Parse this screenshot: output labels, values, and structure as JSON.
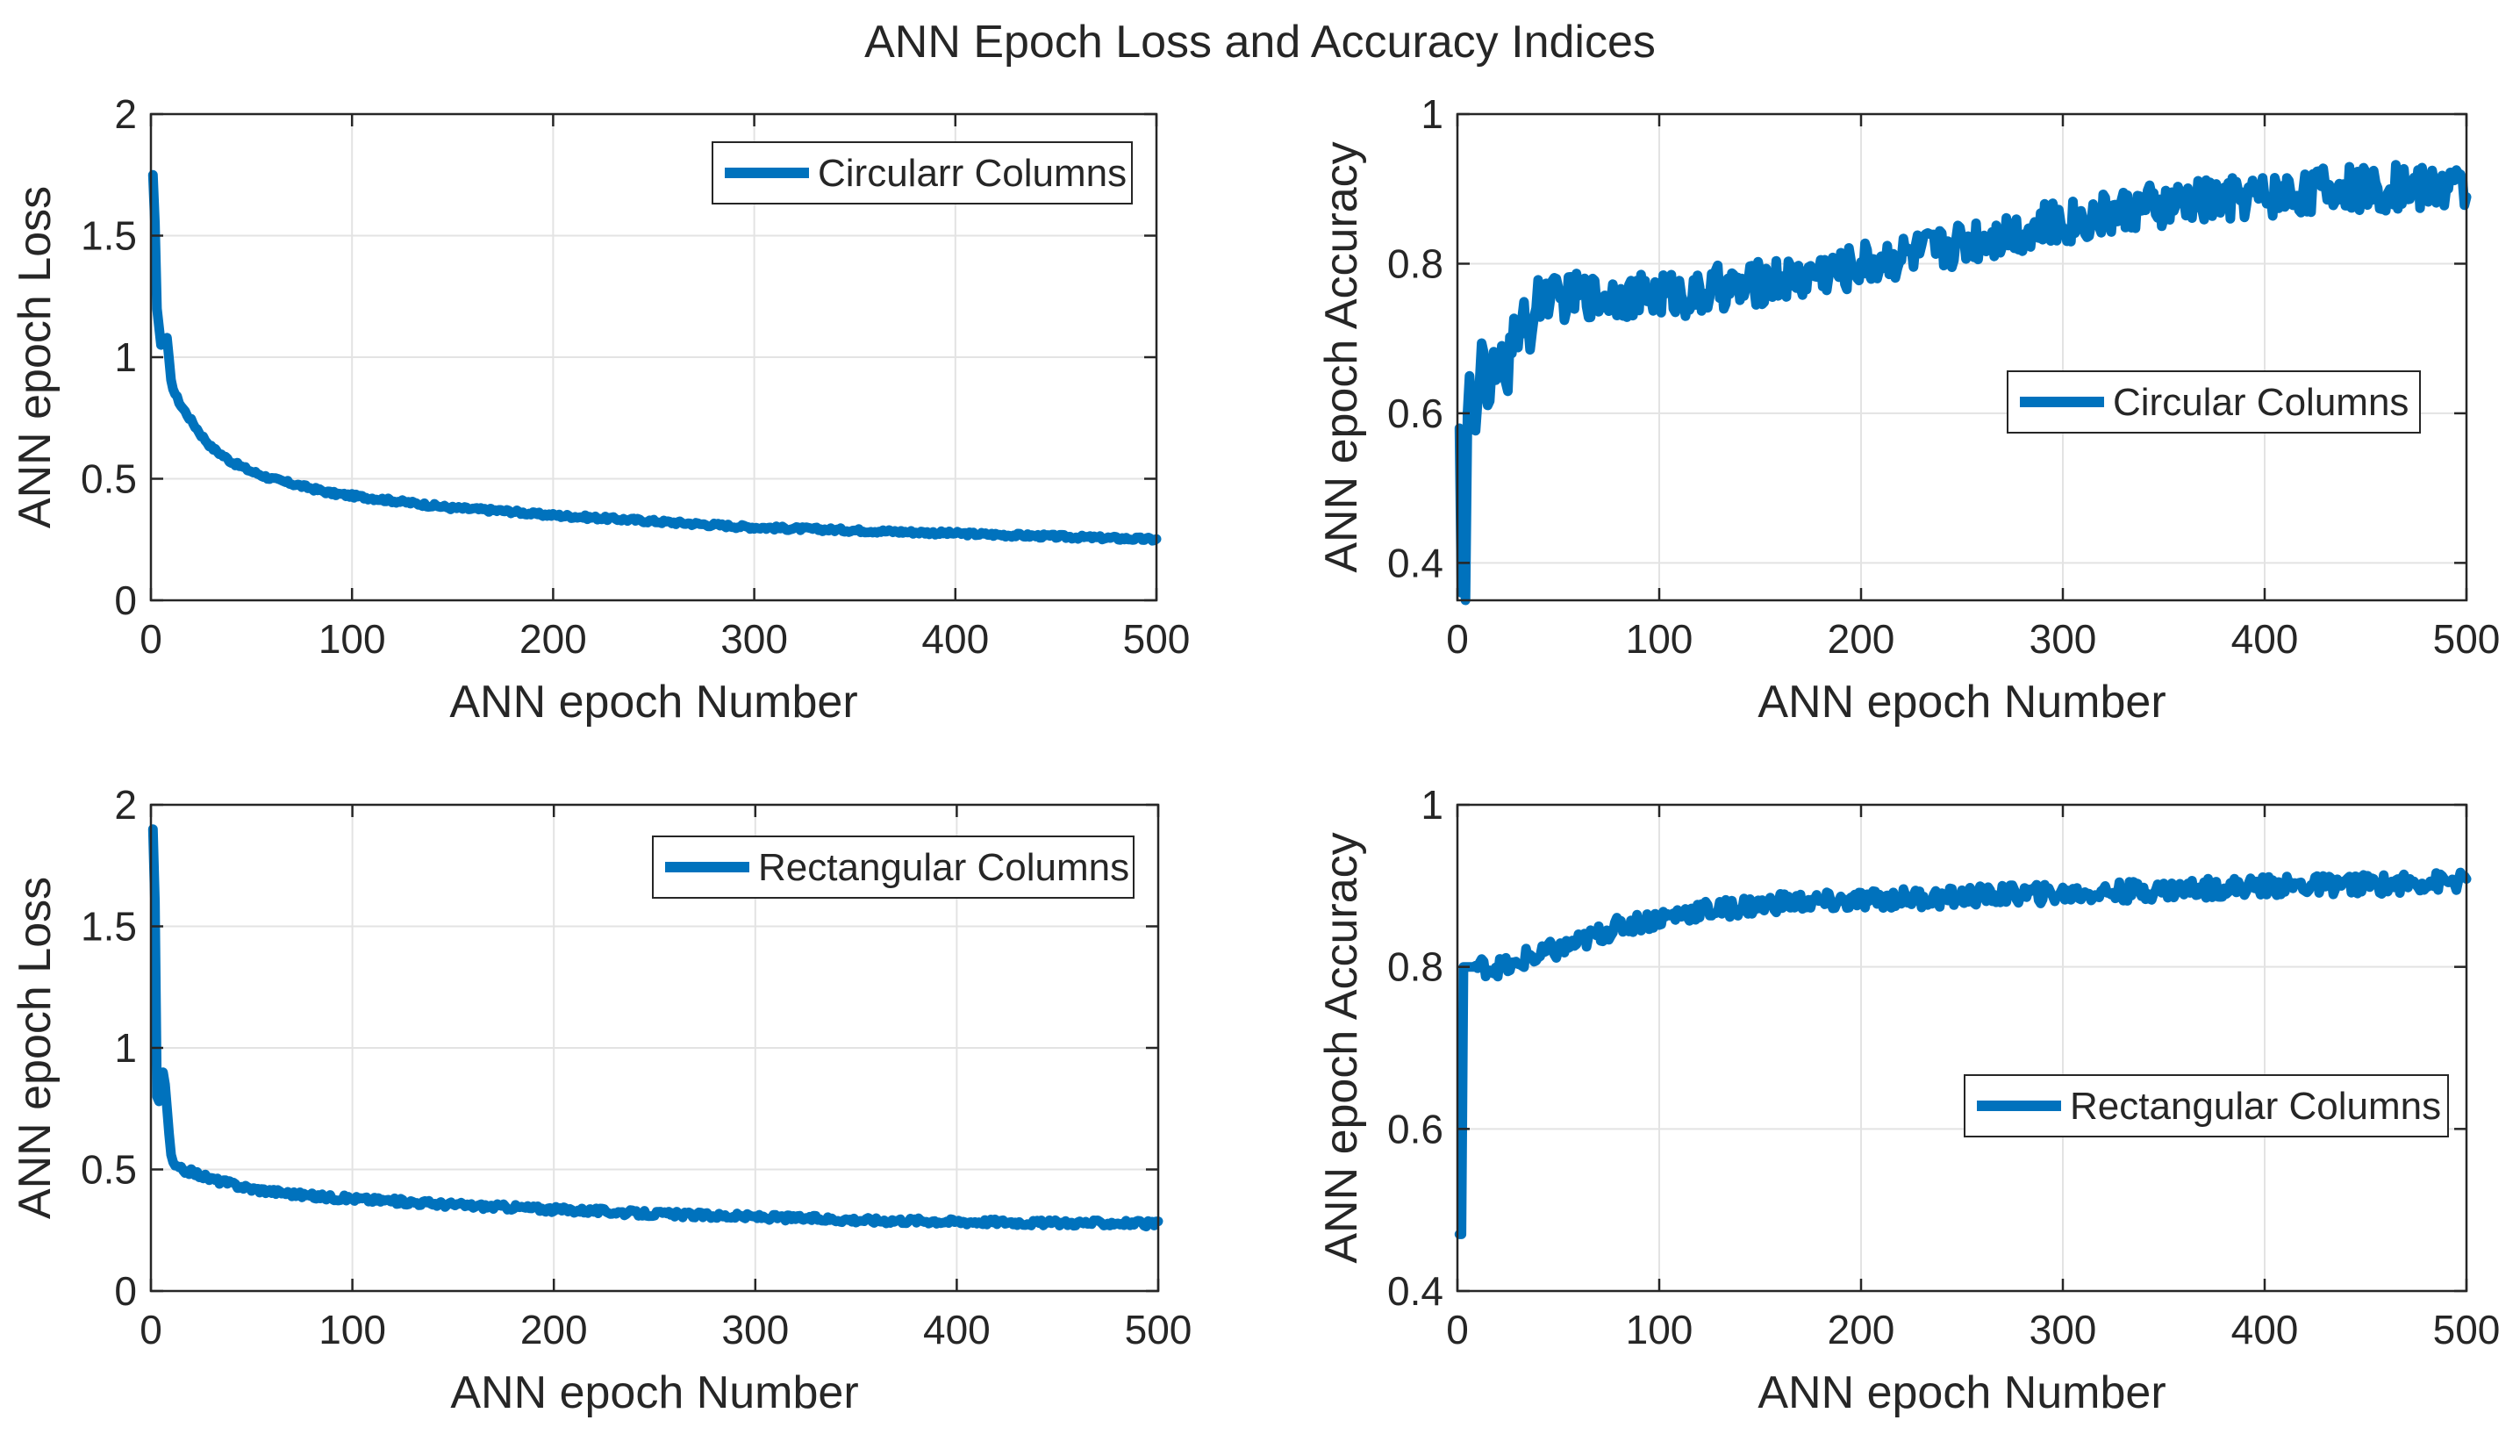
{
  "figure": {
    "title": "ANN Epoch Loss and Accuracy Indices",
    "line_color": "#0072BD"
  },
  "chart_data": [
    {
      "type": "line",
      "panel": "top-left",
      "xlabel": "ANN epoch Number",
      "ylabel": "ANN epoch Loss",
      "xlim": [
        0,
        500
      ],
      "ylim": [
        0,
        2
      ],
      "xticks": [
        0,
        100,
        200,
        300,
        400,
        500
      ],
      "yticks": [
        0,
        0.5,
        1,
        1.5,
        2
      ],
      "ytick_labels": [
        "0",
        "0.5",
        "1",
        "1.5",
        "2"
      ],
      "grid": true,
      "legend": "top-right",
      "series": [
        {
          "name": "Circularr Columns",
          "x": [
            1,
            2,
            3,
            5,
            8,
            10,
            12,
            15,
            20,
            25,
            30,
            40,
            50,
            60,
            70,
            80,
            90,
            100,
            110,
            120,
            130,
            140,
            150,
            160,
            170,
            180,
            190,
            200,
            220,
            240,
            260,
            280,
            300,
            320,
            340,
            360,
            380,
            400,
            420,
            440,
            460,
            480,
            500
          ],
          "values": [
            1.75,
            1.55,
            1.2,
            1.05,
            1.08,
            0.9,
            0.85,
            0.8,
            0.74,
            0.68,
            0.63,
            0.57,
            0.53,
            0.5,
            0.48,
            0.46,
            0.44,
            0.43,
            0.42,
            0.41,
            0.4,
            0.39,
            0.38,
            0.375,
            0.37,
            0.365,
            0.355,
            0.35,
            0.34,
            0.33,
            0.32,
            0.31,
            0.3,
            0.295,
            0.29,
            0.285,
            0.28,
            0.275,
            0.27,
            0.265,
            0.26,
            0.255,
            0.25
          ],
          "noise": 0.008
        }
      ]
    },
    {
      "type": "line",
      "panel": "top-right",
      "xlabel": "ANN epoch Number",
      "ylabel": "ANN epoch Accuracy",
      "xlim": [
        0,
        500
      ],
      "ylim": [
        0.35,
        1
      ],
      "xticks": [
        0,
        100,
        200,
        300,
        400,
        500
      ],
      "yticks": [
        0.4,
        0.6,
        0.8,
        1
      ],
      "ytick_labels": [
        "0.4",
        "0.6",
        "0.8",
        "1"
      ],
      "grid": true,
      "legend": "center-right",
      "series": [
        {
          "name": "Circular Columns",
          "x": [
            1,
            2,
            3,
            4,
            5,
            6,
            8,
            10,
            12,
            15,
            18,
            20,
            22,
            25,
            28,
            30,
            33,
            36,
            40,
            45,
            50,
            60,
            70,
            80,
            90,
            100,
            110,
            120,
            130,
            140,
            150,
            160,
            170,
            180,
            190,
            200,
            210,
            220,
            230,
            240,
            250,
            260,
            270,
            280,
            290,
            300,
            310,
            320,
            330,
            340,
            350,
            360,
            370,
            380,
            390,
            400,
            410,
            420,
            430,
            440,
            450,
            460,
            470,
            480,
            490,
            500
          ],
          "values": [
            0.58,
            0.36,
            0.55,
            0.35,
            0.6,
            0.65,
            0.58,
            0.62,
            0.69,
            0.6,
            0.66,
            0.62,
            0.68,
            0.65,
            0.73,
            0.67,
            0.74,
            0.71,
            0.75,
            0.76,
            0.75,
            0.76,
            0.755,
            0.76,
            0.755,
            0.76,
            0.76,
            0.755,
            0.77,
            0.765,
            0.775,
            0.78,
            0.78,
            0.79,
            0.79,
            0.8,
            0.805,
            0.81,
            0.815,
            0.82,
            0.83,
            0.835,
            0.84,
            0.845,
            0.85,
            0.855,
            0.86,
            0.865,
            0.87,
            0.875,
            0.875,
            0.88,
            0.885,
            0.885,
            0.89,
            0.89,
            0.895,
            0.895,
            0.9,
            0.9,
            0.9,
            0.9,
            0.905,
            0.9,
            0.905,
            0.9
          ],
          "noise": 0.03
        }
      ]
    },
    {
      "type": "line",
      "panel": "bottom-left",
      "xlabel": "ANN epoch Number",
      "ylabel": "ANN epoch Loss",
      "xlim": [
        0,
        500
      ],
      "ylim": [
        0,
        2
      ],
      "xticks": [
        0,
        100,
        200,
        300,
        400,
        500
      ],
      "yticks": [
        0,
        0.5,
        1,
        1.5,
        2
      ],
      "ytick_labels": [
        "0",
        "0.5",
        "1",
        "1.5",
        "2"
      ],
      "grid": true,
      "legend": "top-right",
      "series": [
        {
          "name": "Rectangular Columns",
          "x": [
            1,
            2,
            3,
            4,
            5,
            6,
            7,
            8,
            10,
            12,
            15,
            20,
            30,
            40,
            50,
            60,
            80,
            100,
            120,
            140,
            160,
            180,
            200,
            220,
            240,
            260,
            280,
            300,
            320,
            340,
            360,
            380,
            400,
            420,
            440,
            460,
            480,
            500
          ],
          "values": [
            1.9,
            1.6,
            0.8,
            0.78,
            0.82,
            0.9,
            0.85,
            0.75,
            0.55,
            0.51,
            0.5,
            0.49,
            0.46,
            0.44,
            0.42,
            0.41,
            0.39,
            0.38,
            0.37,
            0.36,
            0.35,
            0.345,
            0.335,
            0.33,
            0.32,
            0.315,
            0.31,
            0.305,
            0.3,
            0.295,
            0.29,
            0.29,
            0.285,
            0.285,
            0.28,
            0.28,
            0.28,
            0.275
          ],
          "noise": 0.012
        }
      ]
    },
    {
      "type": "line",
      "panel": "bottom-right",
      "xlabel": "ANN epoch Number",
      "ylabel": "ANN epoch Accuracy",
      "xlim": [
        0,
        500
      ],
      "ylim": [
        0.4,
        1
      ],
      "xticks": [
        0,
        100,
        200,
        300,
        400,
        500
      ],
      "yticks": [
        0.4,
        0.6,
        0.8,
        1
      ],
      "ytick_labels": [
        "0.4",
        "0.6",
        "0.8",
        "1"
      ],
      "grid": true,
      "legend": "center-right",
      "series": [
        {
          "name": "Rectangular Columns",
          "x": [
            1,
            2,
            3,
            4,
            6,
            10,
            20,
            30,
            35,
            40,
            45,
            50,
            60,
            70,
            80,
            90,
            100,
            110,
            120,
            130,
            140,
            150,
            160,
            170,
            180,
            190,
            200,
            220,
            240,
            260,
            280,
            300,
            320,
            340,
            360,
            380,
            400,
            420,
            440,
            460,
            480,
            500
          ],
          "values": [
            0.47,
            0.47,
            0.8,
            0.8,
            0.8,
            0.8,
            0.8,
            0.8,
            0.815,
            0.81,
            0.82,
            0.82,
            0.83,
            0.84,
            0.85,
            0.855,
            0.86,
            0.865,
            0.87,
            0.87,
            0.875,
            0.875,
            0.88,
            0.88,
            0.88,
            0.88,
            0.882,
            0.885,
            0.885,
            0.888,
            0.89,
            0.89,
            0.892,
            0.894,
            0.896,
            0.898,
            0.9,
            0.9,
            0.902,
            0.902,
            0.905,
            0.905
          ],
          "noise": 0.012
        }
      ]
    }
  ]
}
